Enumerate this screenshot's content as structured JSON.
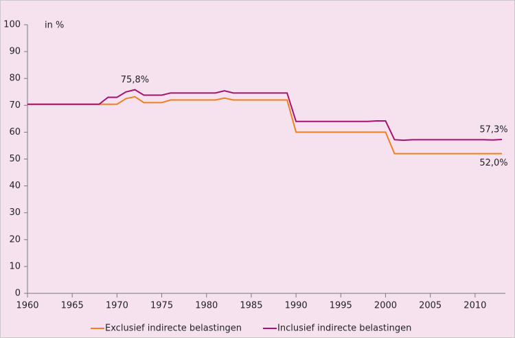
{
  "chart_data": {
    "type": "line",
    "y_label": "in %",
    "x": [
      1960,
      1961,
      1962,
      1963,
      1964,
      1965,
      1966,
      1967,
      1968,
      1969,
      1970,
      1971,
      1972,
      1973,
      1974,
      1975,
      1976,
      1977,
      1978,
      1979,
      1980,
      1981,
      1982,
      1983,
      1984,
      1985,
      1986,
      1987,
      1988,
      1989,
      1990,
      1991,
      1992,
      1993,
      1994,
      1995,
      1996,
      1997,
      1998,
      1999,
      2000,
      2001,
      2002,
      2003,
      2004,
      2005,
      2006,
      2007,
      2008,
      2009,
      2010,
      2011,
      2012,
      2013
    ],
    "series": [
      {
        "name": "Exclusief indirecte belastingen",
        "color": "#f07f1e",
        "values": [
          70.4,
          70.4,
          70.4,
          70.4,
          70.4,
          70.4,
          70.4,
          70.4,
          70.4,
          70.4,
          70.4,
          72.5,
          73.2,
          71.0,
          71.0,
          71.0,
          72.0,
          72.0,
          72.0,
          72.0,
          72.0,
          72.0,
          72.7,
          72.0,
          72.0,
          72.0,
          72.0,
          72.0,
          72.0,
          72.0,
          60.0,
          60.0,
          60.0,
          60.0,
          60.0,
          60.0,
          60.0,
          60.0,
          60.0,
          60.0,
          60.0,
          52.0,
          52.0,
          52.0,
          52.0,
          52.0,
          52.0,
          52.0,
          52.0,
          52.0,
          52.0,
          52.0,
          52.0,
          52.0
        ],
        "value_labels": [
          null,
          null,
          null,
          null,
          null,
          null,
          null,
          null,
          null,
          null,
          null,
          null,
          null,
          null,
          null,
          null,
          null,
          null,
          null,
          null,
          null,
          null,
          null,
          null,
          null,
          null,
          null,
          null,
          null,
          null,
          null,
          null,
          null,
          null,
          null,
          null,
          null,
          null,
          null,
          null,
          null,
          null,
          null,
          null,
          null,
          null,
          null,
          null,
          null,
          null,
          null,
          null,
          null,
          "52,0%"
        ]
      },
      {
        "name": "Inclusief indirecte belastingen",
        "color": "#a8106d",
        "values": [
          70.4,
          70.4,
          70.4,
          70.4,
          70.4,
          70.4,
          70.4,
          70.4,
          70.4,
          73.0,
          73.0,
          75.0,
          75.8,
          73.8,
          73.8,
          73.8,
          74.6,
          74.6,
          74.6,
          74.6,
          74.6,
          74.6,
          75.4,
          74.6,
          74.6,
          74.6,
          74.6,
          74.6,
          74.6,
          74.6,
          64.0,
          64.0,
          64.0,
          64.0,
          64.0,
          64.0,
          64.0,
          64.0,
          64.0,
          64.2,
          64.2,
          57.2,
          57.0,
          57.2,
          57.2,
          57.2,
          57.2,
          57.2,
          57.2,
          57.2,
          57.2,
          57.2,
          57.1,
          57.3
        ],
        "value_labels": [
          null,
          null,
          null,
          null,
          null,
          null,
          null,
          null,
          null,
          null,
          null,
          null,
          "75,8%",
          null,
          null,
          null,
          null,
          null,
          null,
          null,
          null,
          null,
          null,
          null,
          null,
          null,
          null,
          null,
          null,
          null,
          null,
          null,
          null,
          null,
          null,
          null,
          null,
          null,
          null,
          null,
          null,
          null,
          null,
          null,
          null,
          null,
          null,
          null,
          null,
          null,
          null,
          null,
          null,
          "57,3%"
        ]
      }
    ],
    "xlim": [
      1960,
      2014
    ],
    "xticks": [
      1960,
      1965,
      1970,
      1975,
      1980,
      1985,
      1990,
      1995,
      2000,
      2005,
      2010
    ],
    "ylim": [
      0,
      100
    ],
    "yticks": [
      0,
      10,
      20,
      30,
      40,
      50,
      60,
      70,
      80,
      90,
      100
    ],
    "grid": false,
    "legend": "bottom"
  }
}
